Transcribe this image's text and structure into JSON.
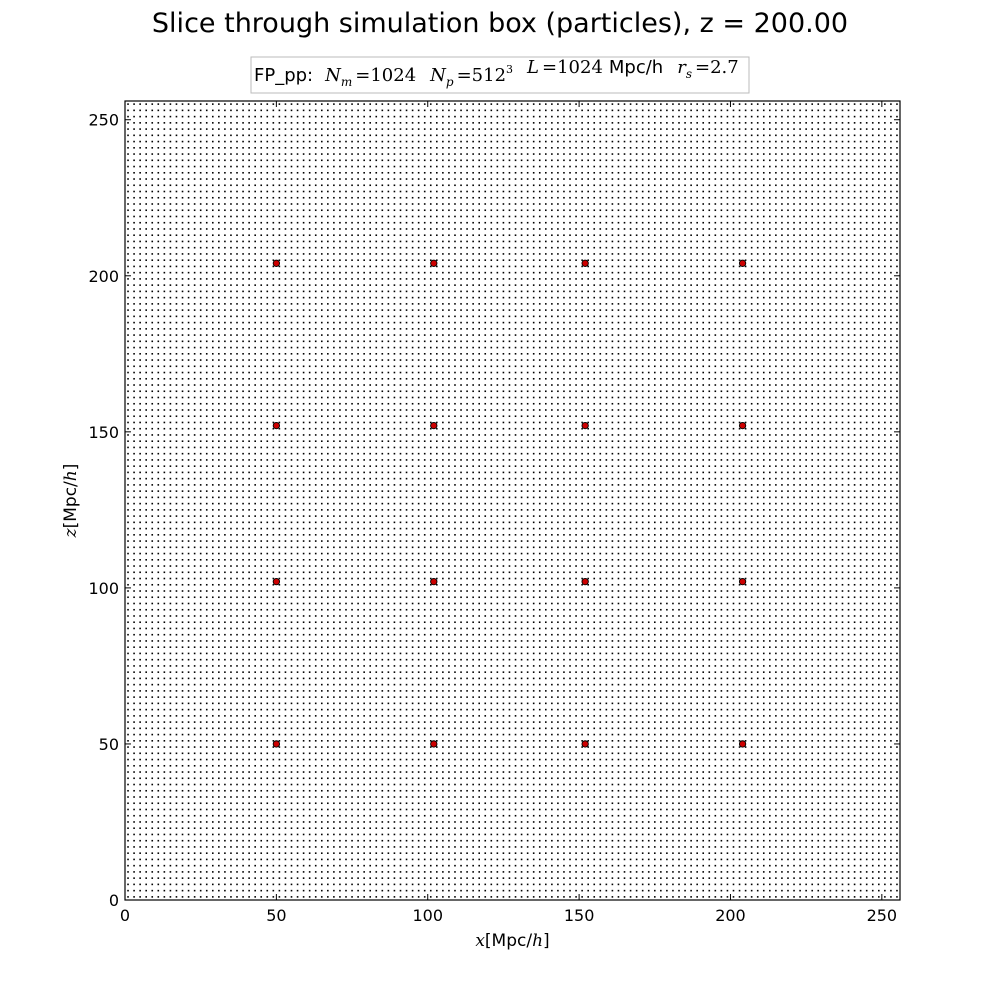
{
  "chart_data": {
    "type": "scatter",
    "title": "Slice through simulation box (particles), z = 200.00",
    "legend": {
      "placement": "top-center",
      "prefix": "FP_pp:",
      "parts": [
        {
          "sym": "N",
          "sub": "m",
          "eq": "=1024"
        },
        {
          "sym": "N",
          "sub": "p",
          "eq": "=512",
          "sup": "3"
        },
        {
          "sym": "L",
          "eq": "=1024",
          "unit": "Mpc/h"
        },
        {
          "sym": "r",
          "sub": "s",
          "eq": "=2.7"
        }
      ]
    },
    "xlabel": {
      "sym": "x",
      "unit": "[Mpc/",
      "unit_sym": "h",
      "close": "]"
    },
    "ylabel": {
      "sym": "z",
      "unit": "[Mpc/",
      "unit_sym": "h",
      "close": "]"
    },
    "xlim": [
      0,
      256
    ],
    "ylim": [
      0,
      256
    ],
    "xticks": [
      0,
      50,
      100,
      150,
      200,
      250
    ],
    "yticks": [
      0,
      50,
      100,
      150,
      200,
      250
    ],
    "xtick_labels": [
      "0",
      "50",
      "100",
      "150",
      "200",
      "250"
    ],
    "ytick_labels": [
      "0",
      "50",
      "100",
      "150",
      "200",
      "250"
    ],
    "grid": false,
    "series": [
      {
        "kind": "particle-grid",
        "color": "#000000",
        "x_start": 1,
        "x_step": 2,
        "x_count": 128,
        "y_start": 1,
        "y_step": 2,
        "y_count": 128
      },
      {
        "kind": "highlighted-particles",
        "color": "#cc0000",
        "edge_color": "#000000",
        "points": [
          [
            50,
            204
          ],
          [
            102,
            204
          ],
          [
            152,
            204
          ],
          [
            204,
            204
          ],
          [
            50,
            152
          ],
          [
            102,
            152
          ],
          [
            152,
            152
          ],
          [
            204,
            152
          ],
          [
            50,
            102
          ],
          [
            102,
            102
          ],
          [
            152,
            102
          ],
          [
            204,
            102
          ],
          [
            50,
            50
          ],
          [
            102,
            50
          ],
          [
            152,
            50
          ],
          [
            204,
            50
          ]
        ]
      }
    ]
  }
}
